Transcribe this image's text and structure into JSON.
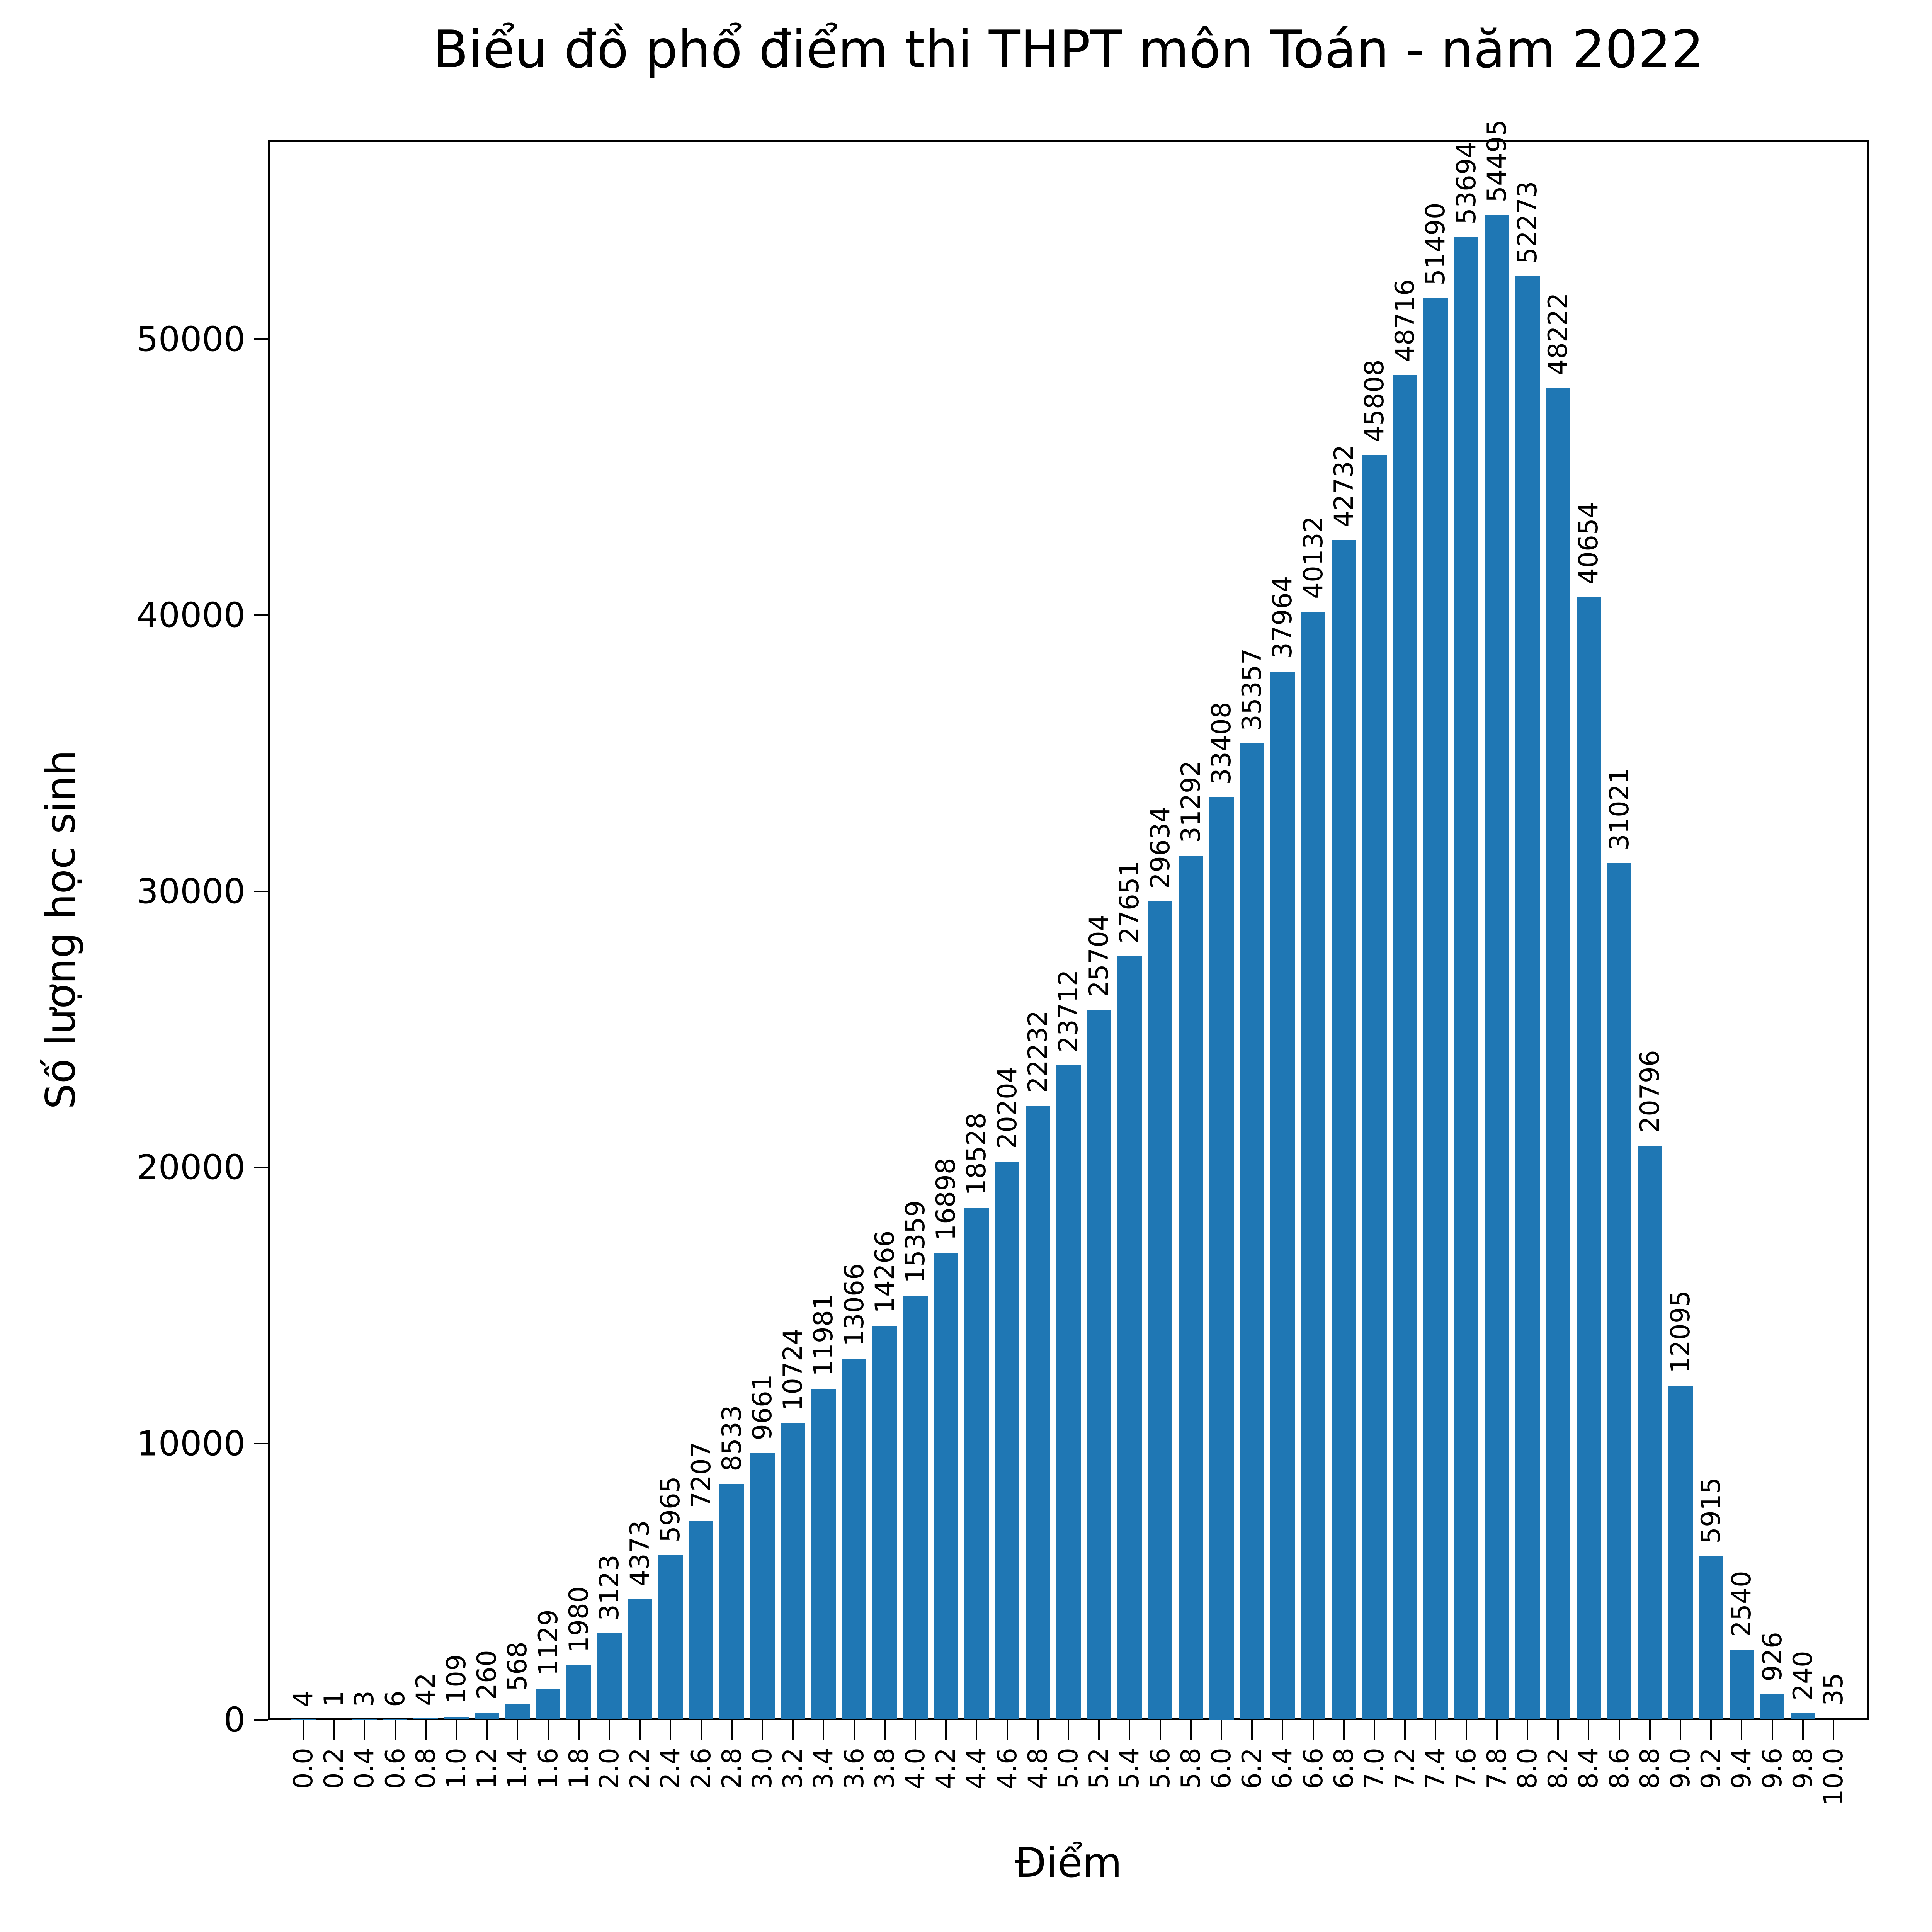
{
  "title": "Biểu đồ phổ điểm thi THPT môn Toán - năm 2022",
  "chart_data": {
    "type": "bar",
    "title": "Biểu đồ phổ điểm thi THPT môn Toán - năm 2022",
    "xlabel": "Điểm",
    "ylabel": "Số lượng học sinh",
    "categories": [
      "0.0",
      "0.2",
      "0.4",
      "0.6",
      "0.8",
      "1.0",
      "1.2",
      "1.4",
      "1.6",
      "1.8",
      "2.0",
      "2.2",
      "2.4",
      "2.6",
      "2.8",
      "3.0",
      "3.2",
      "3.4",
      "3.6",
      "3.8",
      "4.0",
      "4.2",
      "4.4",
      "4.6",
      "4.8",
      "5.0",
      "5.2",
      "5.4",
      "5.6",
      "5.8",
      "6.0",
      "6.2",
      "6.4",
      "6.6",
      "6.8",
      "7.0",
      "7.2",
      "7.4",
      "7.6",
      "7.8",
      "8.0",
      "8.2",
      "8.4",
      "8.6",
      "8.8",
      "9.0",
      "9.2",
      "9.4",
      "9.6",
      "9.8",
      "10.0"
    ],
    "values": [
      4,
      1,
      3,
      6,
      42,
      109,
      260,
      568,
      1129,
      1980,
      3123,
      4373,
      5965,
      7207,
      8533,
      9661,
      10724,
      11981,
      13066,
      14266,
      15359,
      16898,
      18528,
      20204,
      22232,
      23712,
      25704,
      27651,
      29634,
      31292,
      33408,
      35357,
      37964,
      40132,
      42732,
      45808,
      48716,
      51490,
      53694,
      54495,
      52273,
      48222,
      40654,
      31021,
      20796,
      12095,
      5915,
      2540,
      926,
      240,
      35
    ],
    "yticks": [
      0,
      10000,
      20000,
      30000,
      40000,
      50000
    ],
    "ylim": [
      0,
      57220
    ],
    "bar_color": "#1f77b4",
    "text_color": "#000000",
    "grid": false,
    "legend": null,
    "value_labels_rotation": 90,
    "xtick_rotation": 90
  }
}
